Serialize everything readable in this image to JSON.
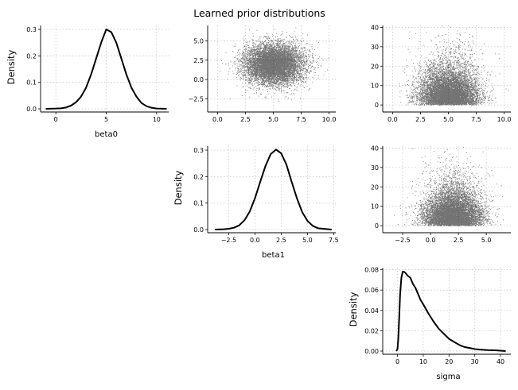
{
  "title": "Learned prior distributions",
  "colors": {
    "line": "#000000",
    "points": "#000000",
    "grid": "#c8c8c8"
  },
  "chart_data": [
    {
      "id": "beta0_density",
      "type": "line",
      "row": 0,
      "col": 0,
      "xlabel": "beta0",
      "ylabel": "Density",
      "xlim": [
        -1.2,
        11.2
      ],
      "ylim": [
        0,
        0.315
      ],
      "xticks": [
        0,
        5,
        10
      ],
      "xtick_labels": [
        "0",
        "5",
        "10"
      ],
      "yticks": [
        0,
        0.1,
        0.2,
        0.3
      ],
      "ytick_labels": [
        "0.0",
        "0.1",
        "0.2",
        "0.3"
      ],
      "grid": true,
      "x": [
        -1,
        0,
        0.5,
        1,
        1.5,
        2,
        2.5,
        3,
        3.5,
        4,
        4.5,
        5,
        5.5,
        6,
        6.5,
        7,
        7.5,
        8,
        8.5,
        9,
        9.5,
        10,
        11
      ],
      "y": [
        0,
        0.001,
        0.002,
        0.005,
        0.012,
        0.025,
        0.046,
        0.08,
        0.13,
        0.19,
        0.25,
        0.3,
        0.29,
        0.25,
        0.19,
        0.13,
        0.08,
        0.046,
        0.022,
        0.01,
        0.004,
        0.001,
        0
      ]
    },
    {
      "id": "beta0_vs_beta1",
      "type": "scatter",
      "row": 0,
      "col": 1,
      "xlabel": "",
      "ylabel": "",
      "xlim": [
        -0.6,
        10.6
      ],
      "ylim": [
        -3.8,
        7.0
      ],
      "xticks": [
        0,
        2.5,
        5,
        7.5,
        10
      ],
      "xtick_labels": [
        "0.0",
        "2.5",
        "5.0",
        "7.5",
        "10.0"
      ],
      "yticks": [
        -2.5,
        0,
        2.5,
        5
      ],
      "ytick_labels": [
        "−2.5",
        "0.0",
        "2.5",
        "5.0"
      ],
      "grid": true,
      "x_dist": {
        "kind": "normal",
        "mean": 5.0,
        "sd": 1.3,
        "range": [
          0,
          10.5
        ]
      },
      "y_dist": {
        "kind": "normal",
        "mean": 2.0,
        "sd": 1.3,
        "range": [
          -3.5,
          6.8
        ]
      }
    },
    {
      "id": "beta0_vs_sigma",
      "type": "scatter",
      "row": 0,
      "col": 2,
      "xlabel": "",
      "ylabel": "",
      "xlim": [
        -0.6,
        10.6
      ],
      "ylim": [
        -2,
        41
      ],
      "xticks": [
        0,
        2.5,
        5,
        7.5,
        10
      ],
      "xtick_labels": [
        "0.0",
        "2.5",
        "5.0",
        "7.5",
        "10.0"
      ],
      "yticks": [
        0,
        10,
        20,
        30,
        40
      ],
      "ytick_labels": [
        "0",
        "10",
        "20",
        "30",
        "40"
      ],
      "grid": true,
      "x_dist": {
        "kind": "normal",
        "mean": 5.0,
        "sd": 1.3,
        "range": [
          0,
          10.5
        ]
      },
      "y_dist": {
        "kind": "gamma",
        "shape": 1.6,
        "scale": 5.0,
        "range": [
          0,
          41
        ]
      }
    },
    {
      "id": "beta1_density",
      "type": "line",
      "row": 1,
      "col": 1,
      "xlabel": "beta1",
      "ylabel": "Density",
      "xlim": [
        -4.2,
        7.7
      ],
      "ylim": [
        0,
        0.315
      ],
      "xticks": [
        -2.5,
        0,
        2.5,
        5,
        7.5
      ],
      "xtick_labels": [
        "−2.5",
        "0.0",
        "2.5",
        "5.0",
        "7.5"
      ],
      "yticks": [
        0,
        0.1,
        0.2,
        0.3
      ],
      "ytick_labels": [
        "0.0",
        "0.1",
        "0.2",
        "0.3"
      ],
      "grid": true,
      "x": [
        -3.8,
        -3,
        -2.5,
        -2,
        -1.5,
        -1,
        -0.5,
        0,
        0.5,
        1,
        1.5,
        2,
        2.5,
        3,
        3.5,
        4,
        4.5,
        5,
        5.5,
        6,
        7.3
      ],
      "y": [
        0,
        0.001,
        0.003,
        0.007,
        0.016,
        0.035,
        0.068,
        0.118,
        0.18,
        0.24,
        0.285,
        0.302,
        0.288,
        0.245,
        0.18,
        0.118,
        0.066,
        0.033,
        0.014,
        0.005,
        0
      ]
    },
    {
      "id": "beta1_vs_sigma",
      "type": "scatter",
      "row": 1,
      "col": 2,
      "xlabel": "",
      "ylabel": "",
      "xlim": [
        -4.0,
        7.2
      ],
      "ylim": [
        -2,
        41
      ],
      "xticks": [
        -2.5,
        0,
        2.5,
        5
      ],
      "xtick_labels": [
        "−2.5",
        "0.0",
        "2.5",
        "5.0"
      ],
      "yticks": [
        0,
        10,
        20,
        30,
        40
      ],
      "ytick_labels": [
        "0",
        "10",
        "20",
        "30",
        "40"
      ],
      "grid": true,
      "x_dist": {
        "kind": "normal",
        "mean": 2.0,
        "sd": 1.3,
        "range": [
          -3.6,
          6.8
        ]
      },
      "y_dist": {
        "kind": "gamma",
        "shape": 1.6,
        "scale": 5.0,
        "range": [
          0,
          41
        ]
      }
    },
    {
      "id": "sigma_density",
      "type": "line",
      "row": 2,
      "col": 2,
      "xlabel": "sigma",
      "ylabel": "Density",
      "xlim": [
        -4.5,
        44
      ],
      "ylim": [
        0,
        0.082
      ],
      "xticks": [
        0,
        10,
        20,
        30,
        40
      ],
      "xtick_labels": [
        "0",
        "10",
        "20",
        "30",
        "40"
      ],
      "yticks": [
        0,
        0.02,
        0.04,
        0.06,
        0.08
      ],
      "ytick_labels": [
        "0.00",
        "0.02",
        "0.04",
        "0.06",
        "0.08"
      ],
      "grid": true,
      "x": [
        -0.5,
        0,
        0.3,
        0.7,
        1,
        1.5,
        2,
        2.5,
        3,
        4,
        5,
        6,
        7,
        8,
        9,
        10,
        12,
        14,
        16,
        18,
        20,
        22,
        24,
        26,
        28,
        30,
        32,
        35,
        38,
        42
      ],
      "y": [
        0,
        0.002,
        0.012,
        0.035,
        0.055,
        0.072,
        0.078,
        0.078,
        0.077,
        0.074,
        0.072,
        0.066,
        0.062,
        0.056,
        0.05,
        0.046,
        0.037,
        0.029,
        0.022,
        0.017,
        0.012,
        0.009,
        0.006,
        0.004,
        0.003,
        0.002,
        0.0015,
        0.001,
        0.0008,
        0
      ]
    }
  ]
}
